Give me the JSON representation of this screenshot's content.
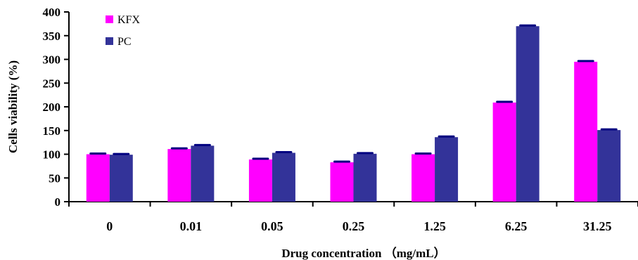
{
  "chart_data": {
    "type": "bar",
    "title": "",
    "xlabel": "Drug concentration （mg/mL）",
    "ylabel": "Cells viability (%)",
    "ylim": [
      0,
      400
    ],
    "yticks": [
      0,
      50,
      100,
      150,
      200,
      250,
      300,
      350,
      400
    ],
    "categories": [
      "0",
      "0.01",
      "0.05",
      "0.25",
      "1.25",
      "6.25",
      "31.25"
    ],
    "series": [
      {
        "name": "KFX",
        "color": "#ff00ff",
        "values": [
          100,
          111,
          89,
          83,
          100,
          209,
          295
        ]
      },
      {
        "name": "PC",
        "color": "#333399",
        "values": [
          99,
          118,
          103,
          101,
          136,
          370,
          151
        ]
      }
    ],
    "error_bar_color": "#000080",
    "grid": false,
    "legend_position": "top-left"
  }
}
